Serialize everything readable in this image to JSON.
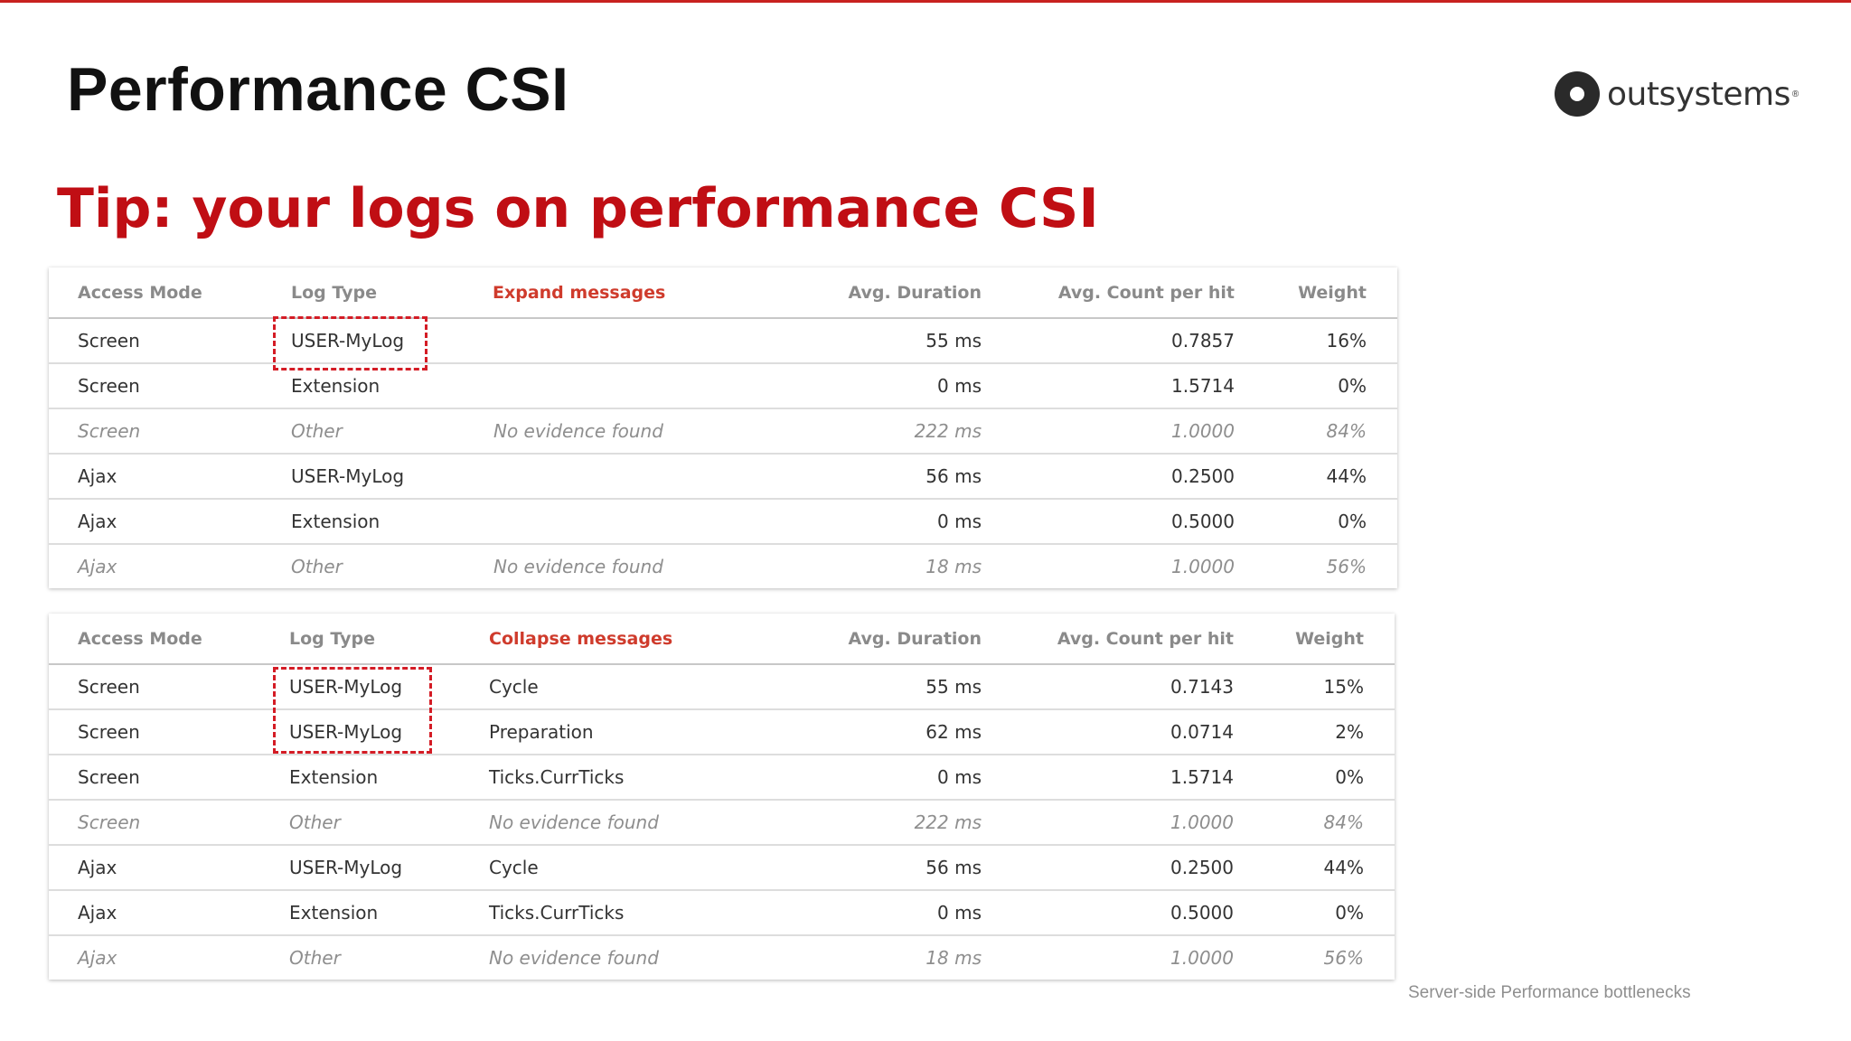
{
  "slide": {
    "title": "Performance CSI",
    "subtitle": "Tip: your logs on performance CSI",
    "footer": "Server-side Performance bottlenecks"
  },
  "logo": {
    "icon": "outsystems-logo-icon",
    "text": "outsystems",
    "registered": "®"
  },
  "colors": {
    "accent_red": "#c00e14",
    "header_link": "#cf3b2c",
    "highlight_dash": "#d41c25"
  },
  "table1": {
    "headers": {
      "access_mode": "Access Mode",
      "log_type": "Log Type",
      "messages": "Expand messages",
      "avg_duration": "Avg. Duration",
      "avg_count": "Avg. Count per hit",
      "weight": "Weight"
    },
    "rows": [
      {
        "access_mode": "Screen",
        "log_type": "USER-MyLog",
        "message": "",
        "avg_duration": "55 ms",
        "avg_count": "0.7857",
        "weight": "16%"
      },
      {
        "access_mode": "Screen",
        "log_type": "Extension",
        "message": "",
        "avg_duration": "0 ms",
        "avg_count": "1.5714",
        "weight": "0%"
      },
      {
        "access_mode": "Screen",
        "log_type": "Other",
        "message": "No evidence found",
        "avg_duration": "222 ms",
        "avg_count": "1.0000",
        "weight": "84%"
      },
      {
        "access_mode": "Ajax",
        "log_type": "USER-MyLog",
        "message": "",
        "avg_duration": "56 ms",
        "avg_count": "0.2500",
        "weight": "44%"
      },
      {
        "access_mode": "Ajax",
        "log_type": "Extension",
        "message": "",
        "avg_duration": "0 ms",
        "avg_count": "0.5000",
        "weight": "0%"
      },
      {
        "access_mode": "Ajax",
        "log_type": "Other",
        "message": "No evidence found",
        "avg_duration": "18 ms",
        "avg_count": "1.0000",
        "weight": "56%"
      }
    ]
  },
  "table2": {
    "headers": {
      "access_mode": "Access Mode",
      "log_type": "Log Type",
      "messages": "Collapse messages",
      "avg_duration": "Avg. Duration",
      "avg_count": "Avg. Count per hit",
      "weight": "Weight"
    },
    "rows": [
      {
        "access_mode": "Screen",
        "log_type": "USER-MyLog",
        "message": "Cycle",
        "avg_duration": "55 ms",
        "avg_count": "0.7143",
        "weight": "15%"
      },
      {
        "access_mode": "Screen",
        "log_type": "USER-MyLog",
        "message": "Preparation",
        "avg_duration": "62 ms",
        "avg_count": "0.0714",
        "weight": "2%"
      },
      {
        "access_mode": "Screen",
        "log_type": "Extension",
        "message": "Ticks.CurrTicks",
        "avg_duration": "0 ms",
        "avg_count": "1.5714",
        "weight": "0%"
      },
      {
        "access_mode": "Screen",
        "log_type": "Other",
        "message": "No evidence found",
        "avg_duration": "222 ms",
        "avg_count": "1.0000",
        "weight": "84%"
      },
      {
        "access_mode": "Ajax",
        "log_type": "USER-MyLog",
        "message": "Cycle",
        "avg_duration": "56 ms",
        "avg_count": "0.2500",
        "weight": "44%"
      },
      {
        "access_mode": "Ajax",
        "log_type": "Extension",
        "message": "Ticks.CurrTicks",
        "avg_duration": "0 ms",
        "avg_count": "0.5000",
        "weight": "0%"
      },
      {
        "access_mode": "Ajax",
        "log_type": "Other",
        "message": "No evidence found",
        "avg_duration": "18 ms",
        "avg_count": "1.0000",
        "weight": "56%"
      }
    ]
  }
}
